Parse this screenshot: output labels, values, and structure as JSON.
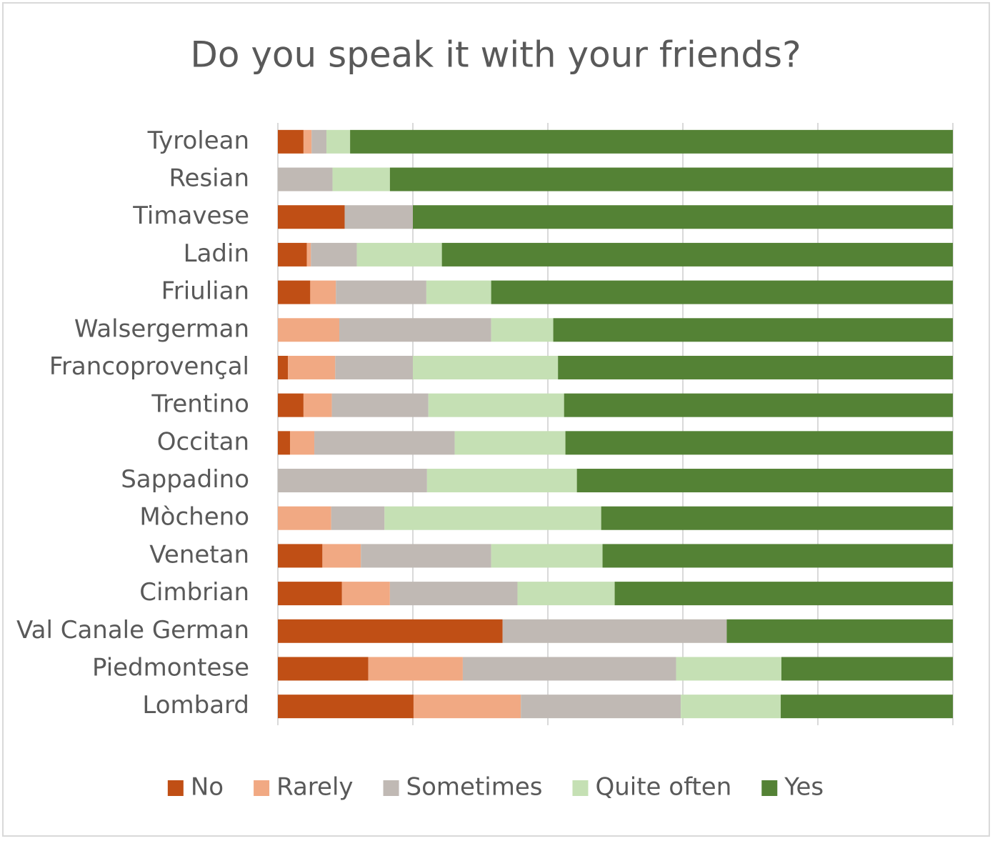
{
  "chart_data": {
    "type": "stacked-bar-horizontal",
    "title": "Do you speak it with your friends?",
    "categories": [
      "Tyrolean",
      "Resian",
      "Timavese",
      "Ladin",
      "Friulian",
      "Walsergerman",
      "Francoprovençal",
      "Trentino",
      "Occitan",
      "Sappadino",
      "Mòcheno",
      "Venetan",
      "Cimbrian",
      "Val Canale German",
      "Piedmontese",
      "Lombard"
    ],
    "series": [
      {
        "name": "No",
        "color": "#c04f15",
        "values": [
          3.8,
          0,
          9.9,
          4.3,
          4.8,
          0,
          1.5,
          3.8,
          1.8,
          0,
          0,
          6.6,
          9.5,
          33.3,
          13.4,
          20.1
        ]
      },
      {
        "name": "Rarely",
        "color": "#f1a983",
        "values": [
          1.2,
          0,
          0,
          0.6,
          3.8,
          9.1,
          7.0,
          4.2,
          3.6,
          0,
          7.9,
          5.7,
          7.1,
          0,
          14.0,
          15.9
        ]
      },
      {
        "name": "Sometimes",
        "color": "#c0b9b4",
        "values": [
          2.2,
          8.1,
          10.1,
          6.8,
          13.4,
          22.5,
          11.5,
          14.3,
          20.8,
          22.1,
          7.9,
          19.3,
          18.9,
          33.2,
          31.6,
          23.7
        ]
      },
      {
        "name": "Quite often",
        "color": "#c5e0b4",
        "values": [
          3.5,
          8.5,
          0,
          12.6,
          9.6,
          9.2,
          21.5,
          20.1,
          16.4,
          22.2,
          32.1,
          16.5,
          14.4,
          0,
          15.6,
          14.8
        ]
      },
      {
        "name": "Yes",
        "color": "#548235",
        "values": [
          89.3,
          83.4,
          80.0,
          75.7,
          68.4,
          59.2,
          58.5,
          57.6,
          57.4,
          55.7,
          52.1,
          51.9,
          50.1,
          33.5,
          25.4,
          25.5
        ]
      }
    ],
    "xlim": [
      0,
      100
    ],
    "xticks": [
      0,
      20,
      40,
      60,
      80,
      100
    ],
    "grid": true,
    "legend": "bottom"
  }
}
